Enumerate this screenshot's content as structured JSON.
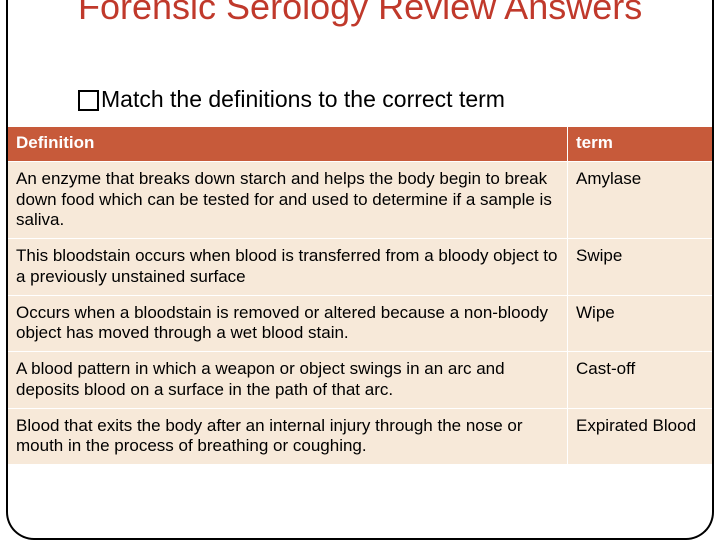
{
  "title": "Forensic Serology Review Answers",
  "instruction": "Match the definitions to the correct term",
  "columns": {
    "definition": "Definition",
    "term": "term"
  },
  "rows": [
    {
      "definition": "An enzyme that breaks down starch and helps the body begin to break down food which can be tested for and used to determine if a sample is saliva.",
      "term": "Amylase"
    },
    {
      "definition": "This bloodstain occurs when blood is transferred from a bloody object to a previously unstained surface",
      "term": "Swipe"
    },
    {
      "definition": "Occurs when a bloodstain is removed or altered because a non-bloody object has moved through a wet blood stain.",
      "term": "Wipe"
    },
    {
      "definition": "A blood pattern in which a weapon or object swings in an arc and deposits blood on a surface in the path of that arc.",
      "term": "Cast-off"
    },
    {
      "definition": "Blood that exits the body after an internal injury through the nose or mouth in the process of breathing or coughing.",
      "term": "Expirated Blood"
    }
  ],
  "colors": {
    "title": "#c0392b",
    "header_bg": "#c75a3a",
    "header_text": "#ffffff",
    "cell_bg": "#f7e9d9",
    "border": "#000000"
  },
  "typography": {
    "title_fontsize": 36,
    "instruction_fontsize": 23,
    "table_fontsize": 17,
    "font_family": "Arial"
  },
  "layout": {
    "table_col_def_width": 560,
    "table_col_term_width": 146
  }
}
